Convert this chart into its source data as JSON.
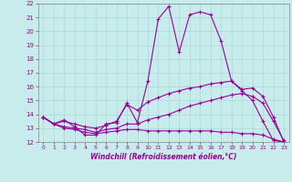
{
  "xlabel": "Windchill (Refroidissement éolien,°C)",
  "xlim": [
    -0.5,
    23.5
  ],
  "ylim": [
    12,
    22
  ],
  "xticks": [
    0,
    1,
    2,
    3,
    4,
    5,
    6,
    7,
    8,
    9,
    10,
    11,
    12,
    13,
    14,
    15,
    16,
    17,
    18,
    19,
    20,
    21,
    22,
    23
  ],
  "yticks": [
    12,
    13,
    14,
    15,
    16,
    17,
    18,
    19,
    20,
    21,
    22
  ],
  "bg_color": "#c8ecec",
  "line_color": "#990099",
  "grid_color": "#a8d8d8",
  "line1_y": [
    13.8,
    13.3,
    13.6,
    13.1,
    12.5,
    12.5,
    13.3,
    13.4,
    14.8,
    13.4,
    16.4,
    20.9,
    21.8,
    18.5,
    21.2,
    21.4,
    21.2,
    19.3,
    16.4,
    15.7,
    15.0,
    13.5,
    12.1,
    12.0
  ],
  "line2_y": [
    13.8,
    13.3,
    13.5,
    13.3,
    13.1,
    13.0,
    13.2,
    13.5,
    14.7,
    14.3,
    14.9,
    15.2,
    15.5,
    15.7,
    15.9,
    16.0,
    16.2,
    16.3,
    16.4,
    15.8,
    15.9,
    15.3,
    13.8,
    12.0
  ],
  "line3_y": [
    13.8,
    13.3,
    13.1,
    13.0,
    12.9,
    12.7,
    12.9,
    13.0,
    13.3,
    13.3,
    13.6,
    13.8,
    14.0,
    14.3,
    14.6,
    14.8,
    15.0,
    15.2,
    15.4,
    15.5,
    15.3,
    14.8,
    13.5,
    12.1
  ],
  "line4_y": [
    13.8,
    13.3,
    13.0,
    12.9,
    12.7,
    12.6,
    12.7,
    12.8,
    12.9,
    12.9,
    12.8,
    12.8,
    12.8,
    12.8,
    12.8,
    12.8,
    12.8,
    12.7,
    12.7,
    12.6,
    12.6,
    12.5,
    12.2,
    12.0
  ]
}
